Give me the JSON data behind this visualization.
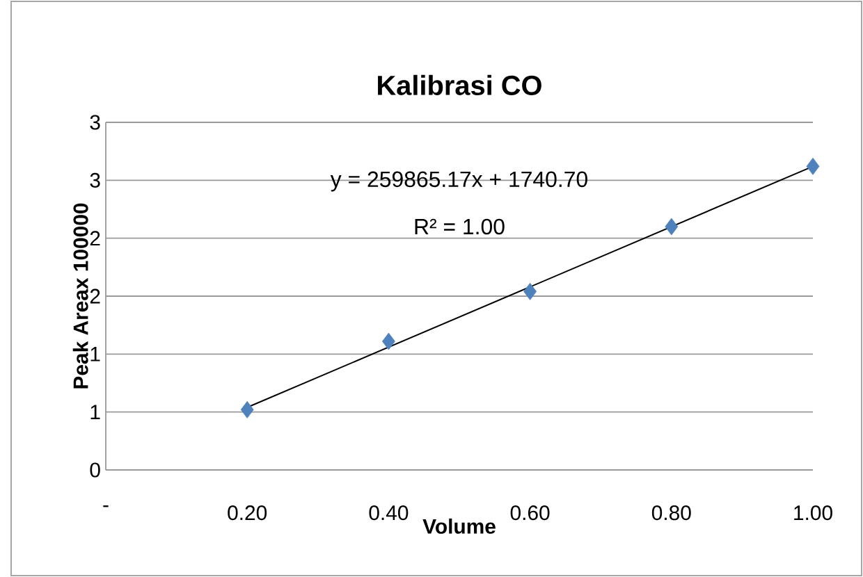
{
  "chart_data": {
    "type": "scatter",
    "title": "Kalibrasi CO",
    "xlabel": "Volume",
    "ylabel": "Peak Areax 100000",
    "x": [
      0.2,
      0.4,
      0.6,
      0.8,
      1.0
    ],
    "series": [
      {
        "color": "#4f81bd",
        "marker": "diamond",
        "values": [
          0.52,
          1.11,
          1.54,
          2.1,
          2.62
        ]
      },
      {
        "type": "line",
        "color": "#000000",
        "marker": "none",
        "line_style": "solid",
        "x": [
          0.2,
          1.0
        ],
        "values": [
          0.54,
          2.62
        ]
      }
    ],
    "xlim": [
      0,
      1
    ],
    "ylim": [
      0,
      3
    ],
    "xticks": [
      {
        "value": 0,
        "label": "-"
      },
      {
        "value": 0.2,
        "label": "0.20"
      },
      {
        "value": 0.4,
        "label": "0.40"
      },
      {
        "value": 0.6,
        "label": "0.60"
      },
      {
        "value": 0.8,
        "label": "0.80"
      },
      {
        "value": 1.0,
        "label": "1.00"
      }
    ],
    "yticks": [
      0,
      {
        "value": 0.5,
        "label": "1"
      },
      1,
      {
        "value": 1.5,
        "label": "2"
      },
      2,
      {
        "value": 2.5,
        "label": "3"
      },
      3
    ],
    "grid": "y",
    "annotations": [
      "y = 259865.17x + 1740.70",
      "R² = 1.00"
    ]
  }
}
